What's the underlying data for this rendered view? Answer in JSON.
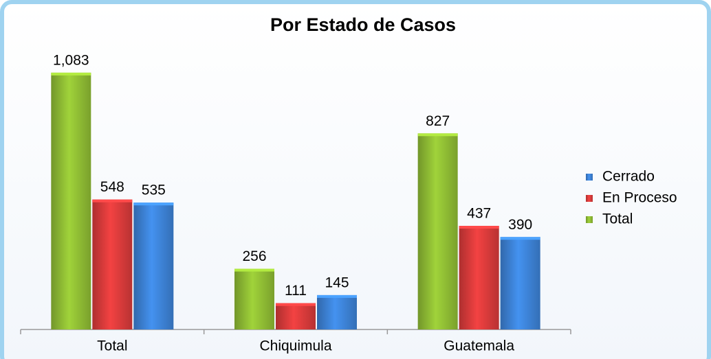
{
  "chart_data": {
    "type": "bar",
    "title": "Por Estado de Casos",
    "categories": [
      "Total",
      "Chiquimula",
      "Guatemala"
    ],
    "series": [
      {
        "name": "Total",
        "color": "#8fbc34",
        "values": [
          1083,
          256,
          827
        ],
        "value_labels": [
          "1,083",
          "256",
          "827"
        ]
      },
      {
        "name": "En Proceso",
        "color": "#d93b3b",
        "values": [
          548,
          111,
          437
        ]
      },
      {
        "name": "Cerrado",
        "color": "#3d82d6",
        "values": [
          535,
          145,
          390
        ]
      }
    ],
    "ylim": [
      0,
      1100
    ],
    "legend": "right"
  }
}
